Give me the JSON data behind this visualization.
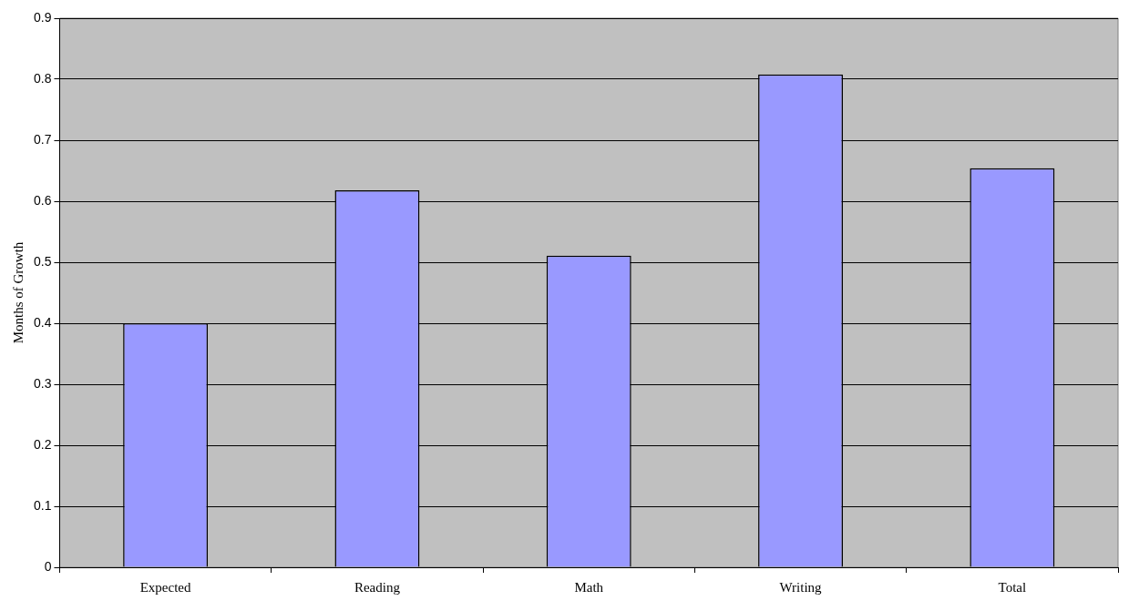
{
  "chart_data": {
    "type": "bar",
    "ylabel": "Months of Growth",
    "categories": [
      "Expected",
      "Reading",
      "Math",
      "Writing",
      "Total"
    ],
    "values": [
      0.4,
      0.618,
      0.511,
      0.808,
      0.654
    ],
    "color": "#9999ff",
    "ylim": [
      0,
      0.9
    ],
    "yticks": [
      0,
      0.1,
      0.2,
      0.3,
      0.4,
      0.5,
      0.6,
      0.7,
      0.8,
      0.9
    ],
    "grid": "y",
    "legend": false
  }
}
